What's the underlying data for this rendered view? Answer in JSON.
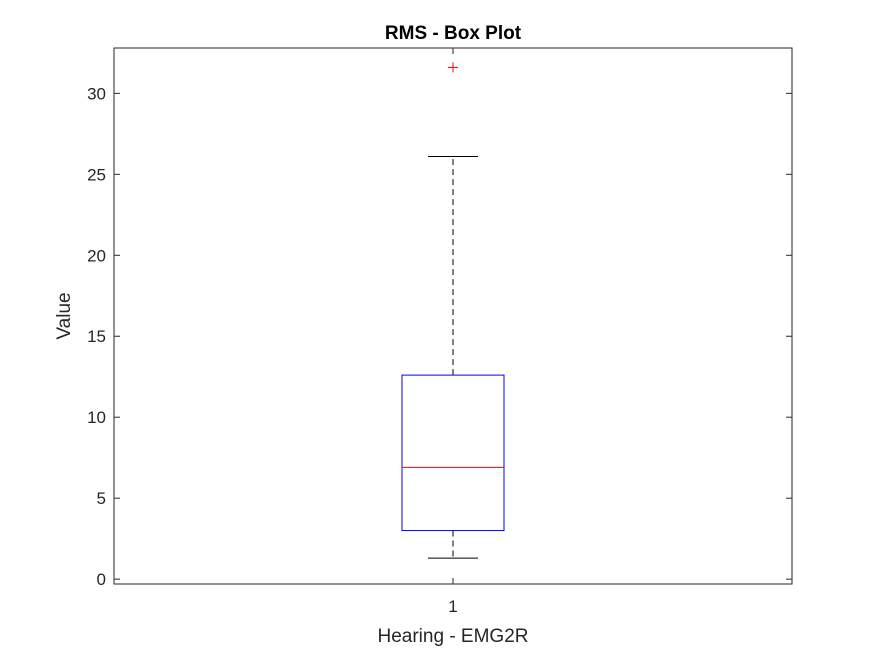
{
  "chart_data": {
    "type": "box",
    "title": "RMS - Box Plot",
    "xlabel": "Hearing - EMG2R",
    "ylabel": "Value",
    "categories": [
      "1"
    ],
    "ylim": [
      -0.3,
      32.8
    ],
    "yticks": [
      0,
      5,
      10,
      15,
      20,
      25,
      30
    ],
    "boxes": [
      {
        "category": "1",
        "whisker_low": 1.3,
        "q1": 3.0,
        "median": 6.9,
        "q3": 12.6,
        "whisker_high": 26.1,
        "outliers": [
          31.6
        ]
      }
    ],
    "grid": false,
    "colors": {
      "box": "#0000ff",
      "median": "#ff0000",
      "whisker": "#000000",
      "outlier": "#ff0000",
      "axis": "#262626"
    }
  }
}
